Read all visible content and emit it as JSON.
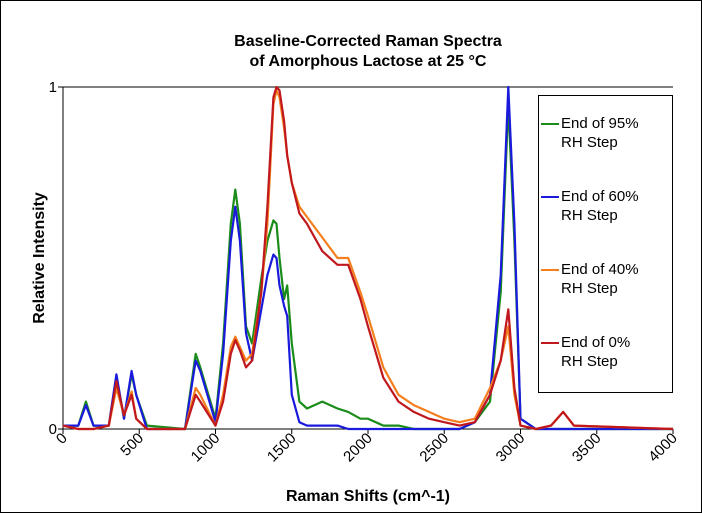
{
  "chart_data": {
    "type": "line",
    "title": [
      "Baseline-Corrected Raman Spectra",
      "of Amorphous Lactose at 25 °C"
    ],
    "x_label": "Raman Shifts (cm^-1)",
    "y_label": "Relative Intensity",
    "x": [
      0,
      100,
      150,
      200,
      300,
      350,
      400,
      450,
      480,
      550,
      800,
      870,
      900,
      1000,
      1050,
      1100,
      1130,
      1160,
      1200,
      1240,
      1300,
      1340,
      1380,
      1400,
      1420,
      1450,
      1470,
      1500,
      1550,
      1600,
      1700,
      1800,
      1870,
      1950,
      2000,
      2100,
      2200,
      2300,
      2400,
      2500,
      2600,
      2700,
      2800,
      2870,
      2920,
      2960,
      3000,
      3100,
      3200,
      3280,
      3350,
      4000
    ],
    "series": [
      {
        "name": "End of 95% RH Step",
        "color": "#1a8c1a",
        "values": [
          0.01,
          0.01,
          0.08,
          0.01,
          0.01,
          0.15,
          0.03,
          0.16,
          0.1,
          0.01,
          0.0,
          0.22,
          0.18,
          0.03,
          0.25,
          0.6,
          0.7,
          0.6,
          0.3,
          0.25,
          0.44,
          0.55,
          0.61,
          0.6,
          0.5,
          0.38,
          0.42,
          0.25,
          0.08,
          0.06,
          0.08,
          0.06,
          0.05,
          0.03,
          0.03,
          0.01,
          0.01,
          0,
          0,
          0,
          0,
          0.02,
          0.08,
          0.4,
          0.95,
          0.55,
          0.03,
          0,
          0,
          0,
          0,
          0
        ]
      },
      {
        "name": "End of 60% RH Step",
        "color": "#1a1adc",
        "values": [
          0.01,
          0.01,
          0.07,
          0.01,
          0.01,
          0.16,
          0.03,
          0.17,
          0.1,
          0.0,
          0,
          0.2,
          0.17,
          0.02,
          0.22,
          0.55,
          0.65,
          0.55,
          0.28,
          0.2,
          0.35,
          0.45,
          0.51,
          0.5,
          0.42,
          0.36,
          0.33,
          0.1,
          0.02,
          0.01,
          0.01,
          0.01,
          0,
          0,
          0,
          0,
          0,
          0,
          0,
          0,
          0,
          0.02,
          0.1,
          0.45,
          1.0,
          0.6,
          0.03,
          0,
          0,
          0,
          0,
          0
        ]
      },
      {
        "name": "End of 40% RH Step",
        "color": "#f57f1e",
        "values": [
          0.01,
          0,
          0,
          0,
          0.01,
          0.12,
          0.04,
          0.11,
          0.03,
          0,
          0,
          0.12,
          0.1,
          0.01,
          0.1,
          0.24,
          0.27,
          0.24,
          0.2,
          0.22,
          0.4,
          0.6,
          0.95,
          0.99,
          0.97,
          0.88,
          0.8,
          0.72,
          0.65,
          0.62,
          0.56,
          0.5,
          0.5,
          0.4,
          0.33,
          0.18,
          0.1,
          0.07,
          0.05,
          0.03,
          0.02,
          0.03,
          0.12,
          0.2,
          0.3,
          0.1,
          0.01,
          0,
          0.01,
          0.05,
          0.01,
          0
        ]
      },
      {
        "name": "End of 0% RH Step",
        "color": "#c0181c",
        "values": [
          0.01,
          0,
          0,
          0,
          0.01,
          0.14,
          0.04,
          0.1,
          0.03,
          0,
          0,
          0.1,
          0.08,
          0.01,
          0.08,
          0.22,
          0.26,
          0.23,
          0.18,
          0.2,
          0.4,
          0.65,
          0.97,
          1.0,
          0.99,
          0.9,
          0.8,
          0.72,
          0.63,
          0.6,
          0.52,
          0.48,
          0.48,
          0.38,
          0.3,
          0.15,
          0.08,
          0.05,
          0.03,
          0.02,
          0.01,
          0.02,
          0.1,
          0.2,
          0.35,
          0.12,
          0.01,
          0,
          0.01,
          0.05,
          0.01,
          0
        ]
      }
    ],
    "xlim": [
      0,
      4000
    ],
    "xticks": [
      0,
      500,
      1000,
      1500,
      2000,
      2500,
      3000,
      3500,
      4000
    ],
    "ylim": [
      0,
      1
    ],
    "yticks": [
      0,
      1
    ],
    "grid": true,
    "legend": "right"
  }
}
